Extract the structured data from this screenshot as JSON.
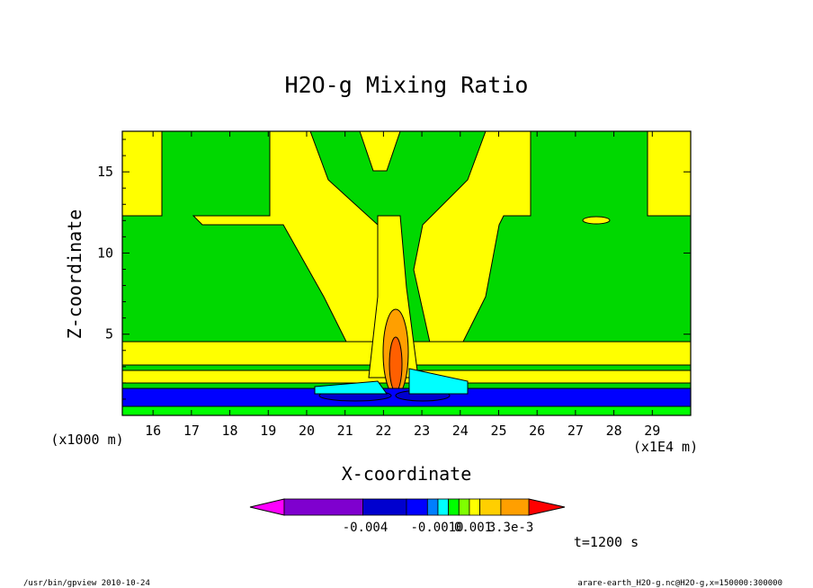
{
  "chart_data": {
    "type": "heatmap",
    "title": "H2O-g Mixing Ratio",
    "xlabel": "X-coordinate",
    "ylabel": "Z-coordinate",
    "x_unit": "(x1E4 m)",
    "y_unit": "(x1000 m)",
    "xlim": [
      15.2,
      30.0
    ],
    "ylim": [
      0.0,
      17.5
    ],
    "x_ticks": [
      16,
      17,
      18,
      19,
      20,
      21,
      22,
      23,
      24,
      25,
      26,
      27,
      28,
      29
    ],
    "x_tick_labels": [
      "16",
      "17",
      "18",
      "19",
      "20",
      "21",
      "22",
      "23",
      "24",
      "25",
      "26",
      "27",
      "28",
      "29"
    ],
    "y_ticks": [
      5,
      10,
      15
    ],
    "y_tick_labels": [
      "5",
      "10",
      "15"
    ],
    "time_label": "t=1200 s",
    "colorbar": {
      "colors": [
        "#ff00ff",
        "#7f00cf",
        "#0000cf",
        "#0000ff",
        "#007fff",
        "#00ffff",
        "#00ff00",
        "#7fff00",
        "#ffff00",
        "#ffcf00",
        "#ff9f00",
        "#ff5f00",
        "#ff0000"
      ],
      "labels": [
        "-0.004",
        "-0.0010",
        "0.001",
        "3.3e-3"
      ]
    },
    "regions": [
      {
        "level": "background",
        "color": "#00d800"
      },
      {
        "level": "upper-plumes",
        "color": "#ffff00"
      },
      {
        "level": "central-column",
        "color": "#ffff00"
      },
      {
        "level": "core",
        "color": "#ff9f00"
      },
      {
        "level": "peak",
        "color": "#ff5f00"
      },
      {
        "level": "low-negative",
        "color": "#0000ff"
      },
      {
        "level": "min",
        "color": "#0000cf"
      },
      {
        "level": "slightly-negative",
        "color": "#00ffff"
      }
    ]
  },
  "footer": {
    "left": "/usr/bin/gpview  2010-10-24",
    "right": "arare-earth_H2O-g.nc@H2O-g,x=150000:300000"
  }
}
